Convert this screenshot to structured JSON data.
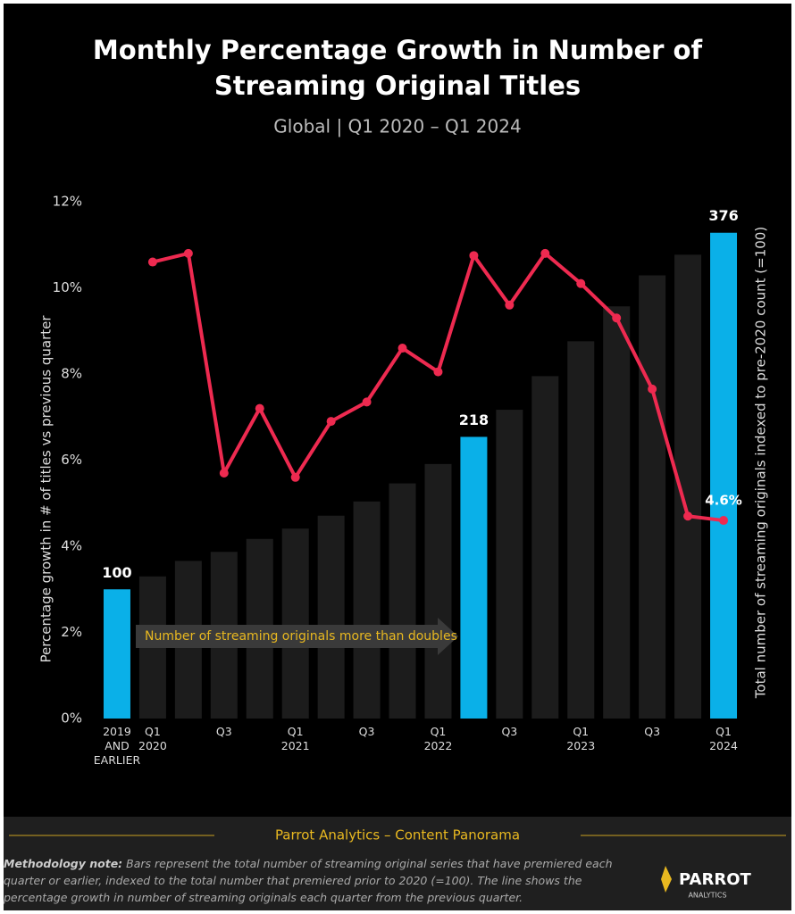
{
  "chart_data": {
    "type": "bar_line",
    "title": "Monthly Percentage Growth in Number of Streaming Original Titles",
    "subtitle": "Global  |  Q1 2020 – Q1 2024",
    "y_label": "Percentage growth in # of titles vs previous quarter",
    "y2_label": "Total number of streaming originals indexed to pre-2020 count (=100)",
    "annotation": "Number of streaming originals more than doubles",
    "categories": [
      "2019\nAND\nEARLIER",
      "Q1\n2020",
      null,
      "Q3",
      null,
      "Q1\n2021",
      null,
      "Q3",
      null,
      "Q1\n2022",
      null,
      "Q3",
      null,
      "Q1\n2023",
      null,
      "Q3",
      null,
      "Q1\n2024"
    ],
    "ylim": [
      0,
      12
    ],
    "yticks": [
      {
        "value": 0,
        "label": "0%"
      },
      {
        "value": 2,
        "label": "2%"
      },
      {
        "value": 4,
        "label": "4%"
      },
      {
        "value": 6,
        "label": "6%"
      },
      {
        "value": 8,
        "label": "8%"
      },
      {
        "value": 10,
        "label": "10%"
      },
      {
        "value": 12,
        "label": "12%"
      }
    ],
    "y2lim": [
      0,
      400
    ],
    "series": [
      {
        "type": "bar",
        "axis": "y2",
        "colors": [
          "#0ab0e8",
          "#1c1c1c",
          "#1c1c1c",
          "#1c1c1c",
          "#1c1c1c",
          "#1c1c1c",
          "#1c1c1c",
          "#1c1c1c",
          "#1c1c1c",
          "#1c1c1c",
          "#0ab0e8",
          "#1c1c1c",
          "#1c1c1c",
          "#1c1c1c",
          "#1c1c1c",
          "#1c1c1c",
          "#1c1c1c",
          "#0ab0e8"
        ],
        "values": [
          100,
          110,
          122,
          129,
          139,
          147,
          157,
          168,
          182,
          197,
          218,
          239,
          265,
          292,
          319,
          343,
          359,
          376
        ],
        "value_labels": [
          "100",
          null,
          null,
          null,
          null,
          null,
          null,
          null,
          null,
          null,
          "218",
          null,
          null,
          null,
          null,
          null,
          null,
          "376"
        ]
      },
      {
        "type": "line",
        "color": "#ee2a50",
        "values": [
          null,
          10.6,
          10.8,
          5.7,
          7.2,
          5.6,
          6.9,
          7.35,
          8.6,
          8.05,
          10.75,
          9.6,
          10.8,
          10.1,
          9.3,
          7.65,
          4.7,
          4.6
        ],
        "value_labels": [
          null,
          null,
          null,
          null,
          null,
          null,
          null,
          null,
          null,
          null,
          null,
          null,
          null,
          null,
          null,
          null,
          null,
          "4.6%"
        ]
      }
    ]
  },
  "footer": {
    "source": "Parrot Analytics – Content Panorama",
    "methodology_label": "Methodology note:",
    "methodology_text": "Bars represent the total number of streaming original series that have premiered each quarter or earlier, indexed to the total number that premiered prior to 2020 (=100).  The line shows the percentage growth in number of streaming originals each quarter from the previous quarter.",
    "logo": "PARROT",
    "logo_sub": "ANALYTICS"
  }
}
